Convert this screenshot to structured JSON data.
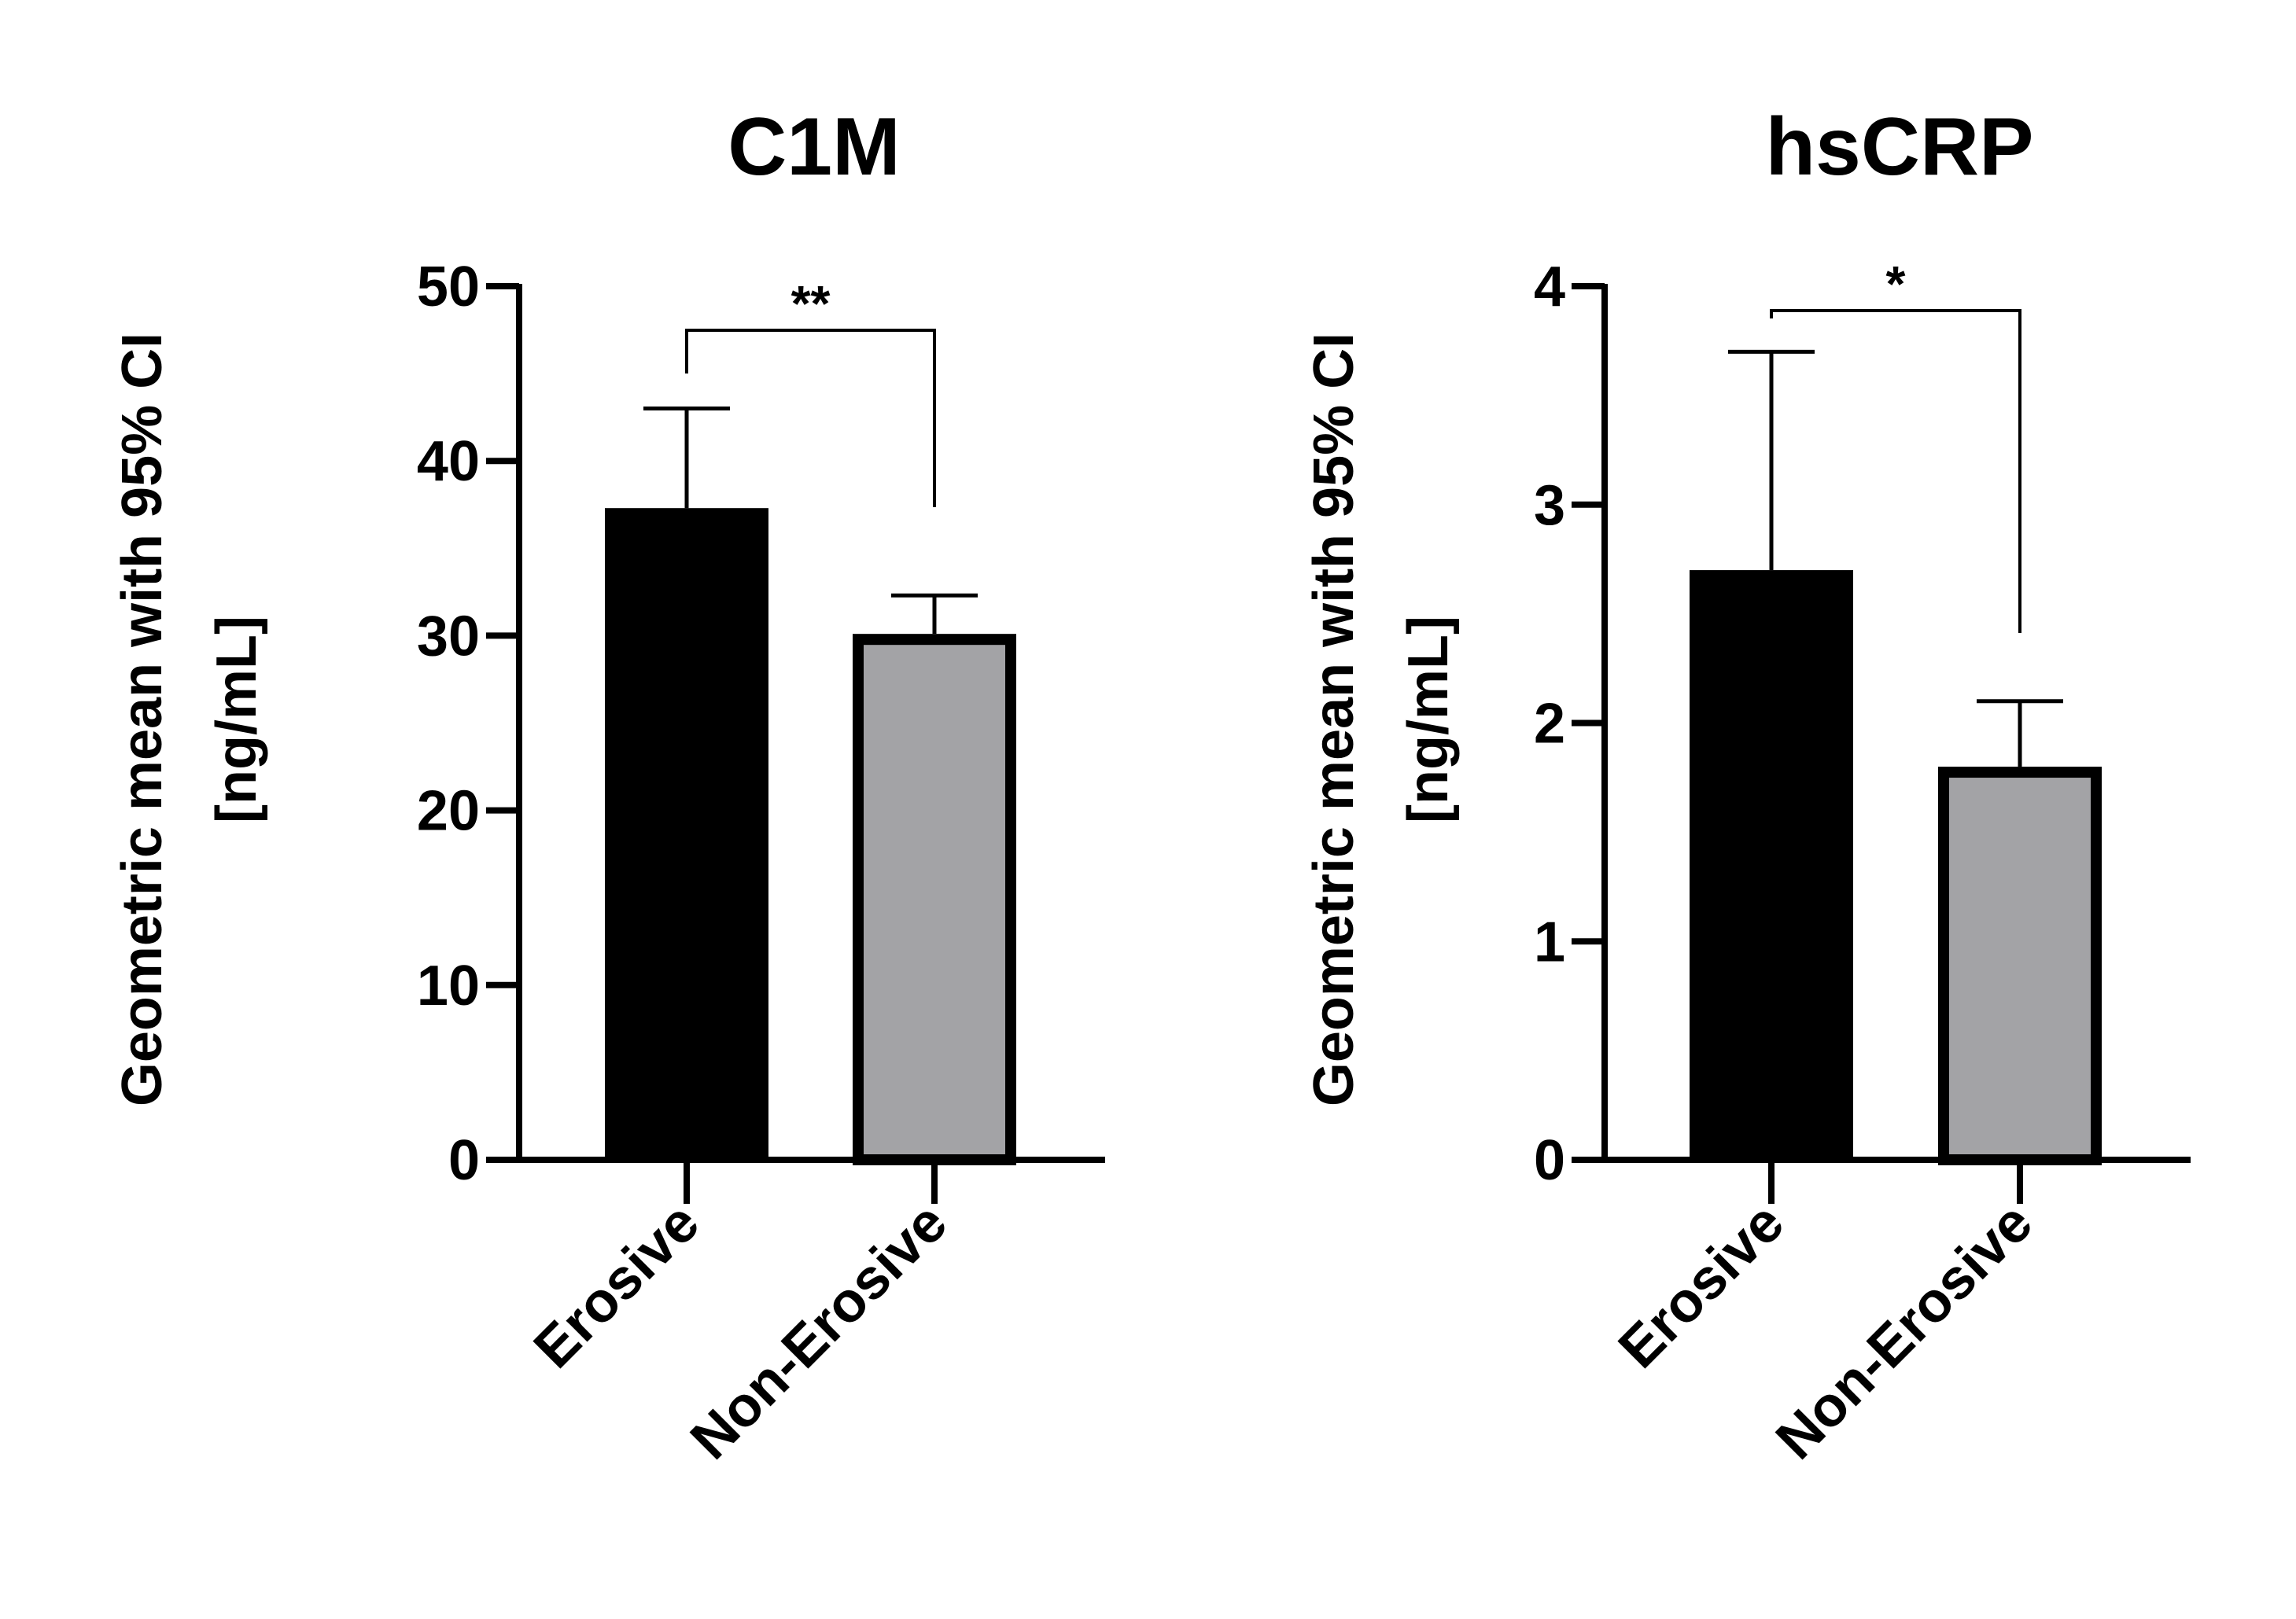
{
  "chart_data": [
    {
      "type": "bar",
      "title": "C1M",
      "ylabel": "Geometric mean with 95% CI [ng/mL]",
      "ylabel_lines": [
        "Geometric mean with 95% CI",
        "[ng/mL]"
      ],
      "xlabel": "",
      "categories": [
        "Erosive",
        "Non-Erosive"
      ],
      "values": [
        37.3,
        30.1
      ],
      "ci_upper": [
        43.0,
        32.3
      ],
      "ylim": [
        0,
        50
      ],
      "yticks": [
        0,
        10,
        20,
        30,
        40,
        50
      ],
      "bar_colors": [
        "#000000",
        "#a3a3a6"
      ],
      "significance": {
        "between": [
          0,
          1
        ],
        "label": "**"
      },
      "grid": false,
      "legend": "none"
    },
    {
      "type": "bar",
      "title": "hsCRP",
      "ylabel": "Geometric mean with 95% CI [ng/mL]",
      "ylabel_lines": [
        "Geometric mean with 95% CI",
        "[ng/mL]"
      ],
      "xlabel": "",
      "categories": [
        "Erosive",
        "Non-Erosive"
      ],
      "values": [
        2.7,
        1.8
      ],
      "ci_upper": [
        3.7,
        2.1
      ],
      "ylim": [
        0,
        4
      ],
      "yticks": [
        0,
        1,
        2,
        3,
        4
      ],
      "bar_colors": [
        "#000000",
        "#a3a3a6"
      ],
      "significance": {
        "between": [
          0,
          1
        ],
        "label": "*"
      },
      "grid": false,
      "legend": "none"
    }
  ]
}
